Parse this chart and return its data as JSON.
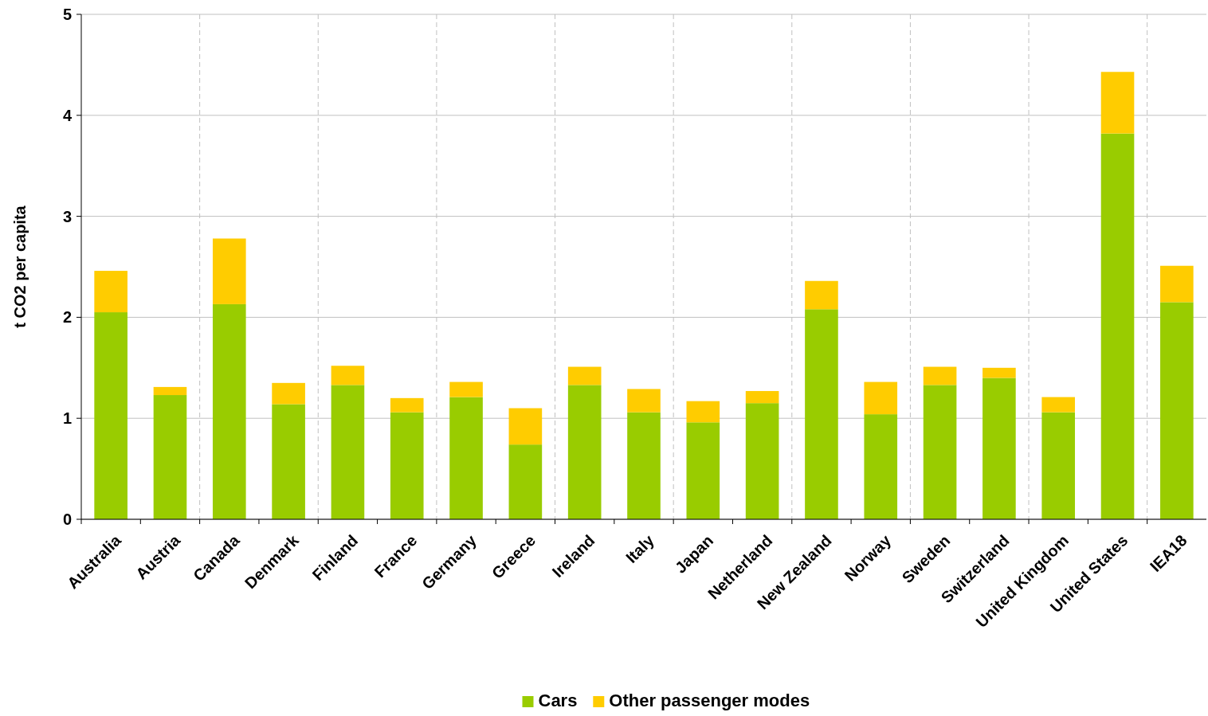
{
  "chart_data": {
    "type": "bar",
    "stacked": true,
    "ylabel": "t CO2 per capita",
    "categories": [
      "Australia",
      "Austria",
      "Canada",
      "Denmark",
      "Finland",
      "France",
      "Germany",
      "Greece",
      "Ireland",
      "Italy",
      "Japan",
      "Netherland",
      "New Zealand",
      "Norway",
      "Sweden",
      "Switzerland",
      "United Kingdom",
      "United States",
      "IEA18"
    ],
    "series": [
      {
        "name": "Cars",
        "color": "#99cc00",
        "values": [
          2.05,
          1.23,
          2.13,
          1.14,
          1.33,
          1.06,
          1.21,
          0.74,
          1.33,
          1.06,
          0.96,
          1.15,
          2.08,
          1.04,
          1.33,
          1.4,
          1.06,
          3.82,
          2.15
        ]
      },
      {
        "name": "Other passenger modes",
        "color": "#ffcc00",
        "values": [
          0.41,
          0.08,
          0.65,
          0.21,
          0.19,
          0.14,
          0.15,
          0.36,
          0.18,
          0.23,
          0.21,
          0.12,
          0.28,
          0.32,
          0.18,
          0.1,
          0.15,
          0.61,
          0.36
        ]
      }
    ],
    "ylim": [
      0,
      5
    ],
    "yticks": [
      0,
      1,
      2,
      3,
      4,
      5
    ],
    "grid": true,
    "legend": "bottom"
  }
}
